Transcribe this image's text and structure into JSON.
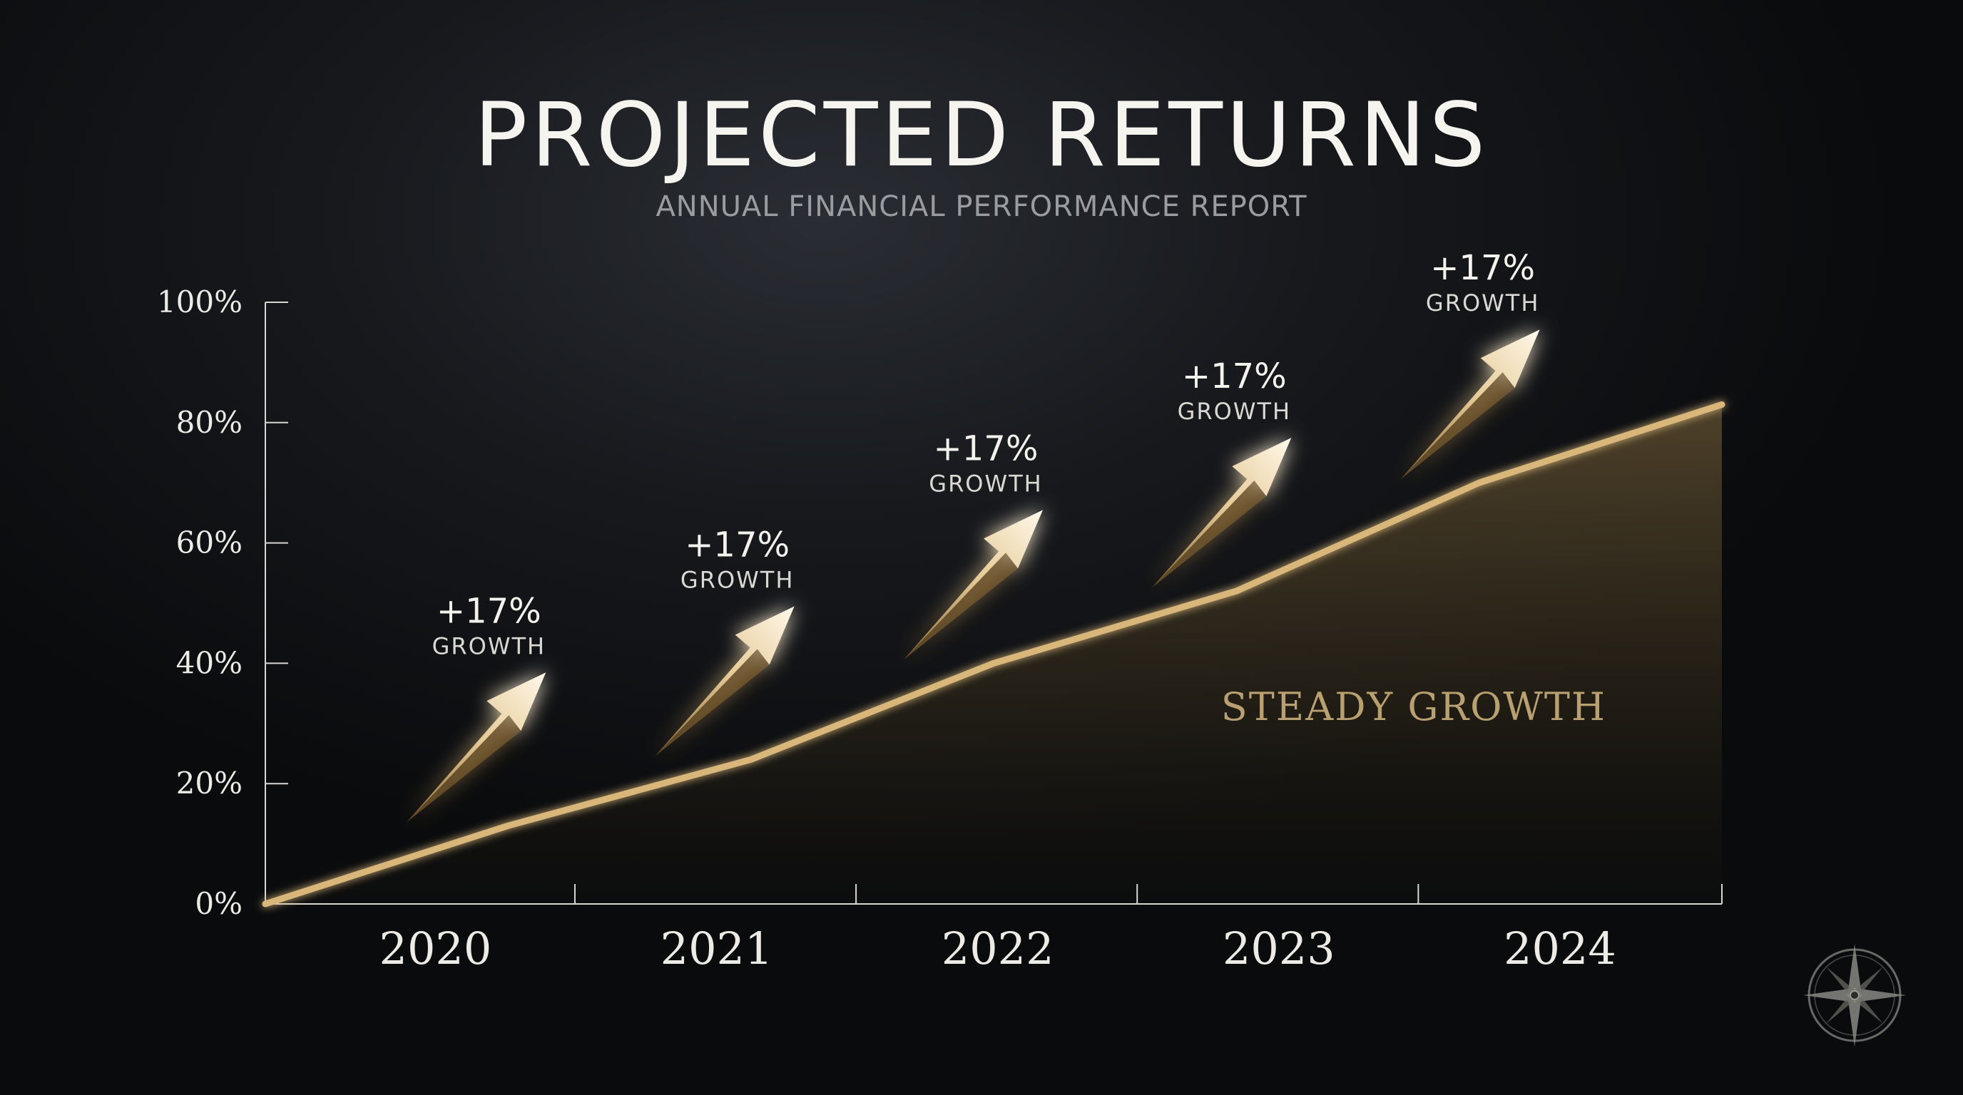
{
  "header": {
    "title": "PROJECTED RETURNS",
    "subtitle": "ANNUAL FINANCIAL PERFORMANCE REPORT"
  },
  "colors": {
    "background": "#0b0c0e",
    "line": "#d9b77a",
    "accent_gold": "#c9a46a",
    "text": "#f4f2ec"
  },
  "logo": {
    "icon": "compass-rose-icon"
  },
  "chart_data": {
    "type": "area",
    "title": "PROJECTED RETURNS",
    "subtitle": "ANNUAL FINANCIAL PERFORMANCE REPORT",
    "xlabel": "",
    "ylabel": "",
    "categories": [
      "2020",
      "2021",
      "2022",
      "2023",
      "2024"
    ],
    "ylim": [
      0,
      100
    ],
    "yticks": [
      "0%",
      "20%",
      "40%",
      "60%",
      "80%",
      "100%"
    ],
    "grid": false,
    "series": [
      {
        "x": [
          "2019",
          "2020",
          "2021",
          "2022",
          "2023",
          "2024",
          "2024 end"
        ],
        "y": [
          0,
          13,
          24,
          40,
          52,
          70,
          83
        ]
      }
    ],
    "annotations": [
      {
        "year": "2020",
        "value": "+17%",
        "label": "GROWTH"
      },
      {
        "year": "2021",
        "value": "+17%",
        "label": "GROWTH"
      },
      {
        "year": "2022",
        "value": "+17%",
        "label": "GROWTH"
      },
      {
        "year": "2023",
        "value": "+17%",
        "label": "GROWTH"
      },
      {
        "year": "2024",
        "value": "+17%",
        "label": "GROWTH"
      }
    ],
    "area_label": "STEADY GROWTH"
  }
}
